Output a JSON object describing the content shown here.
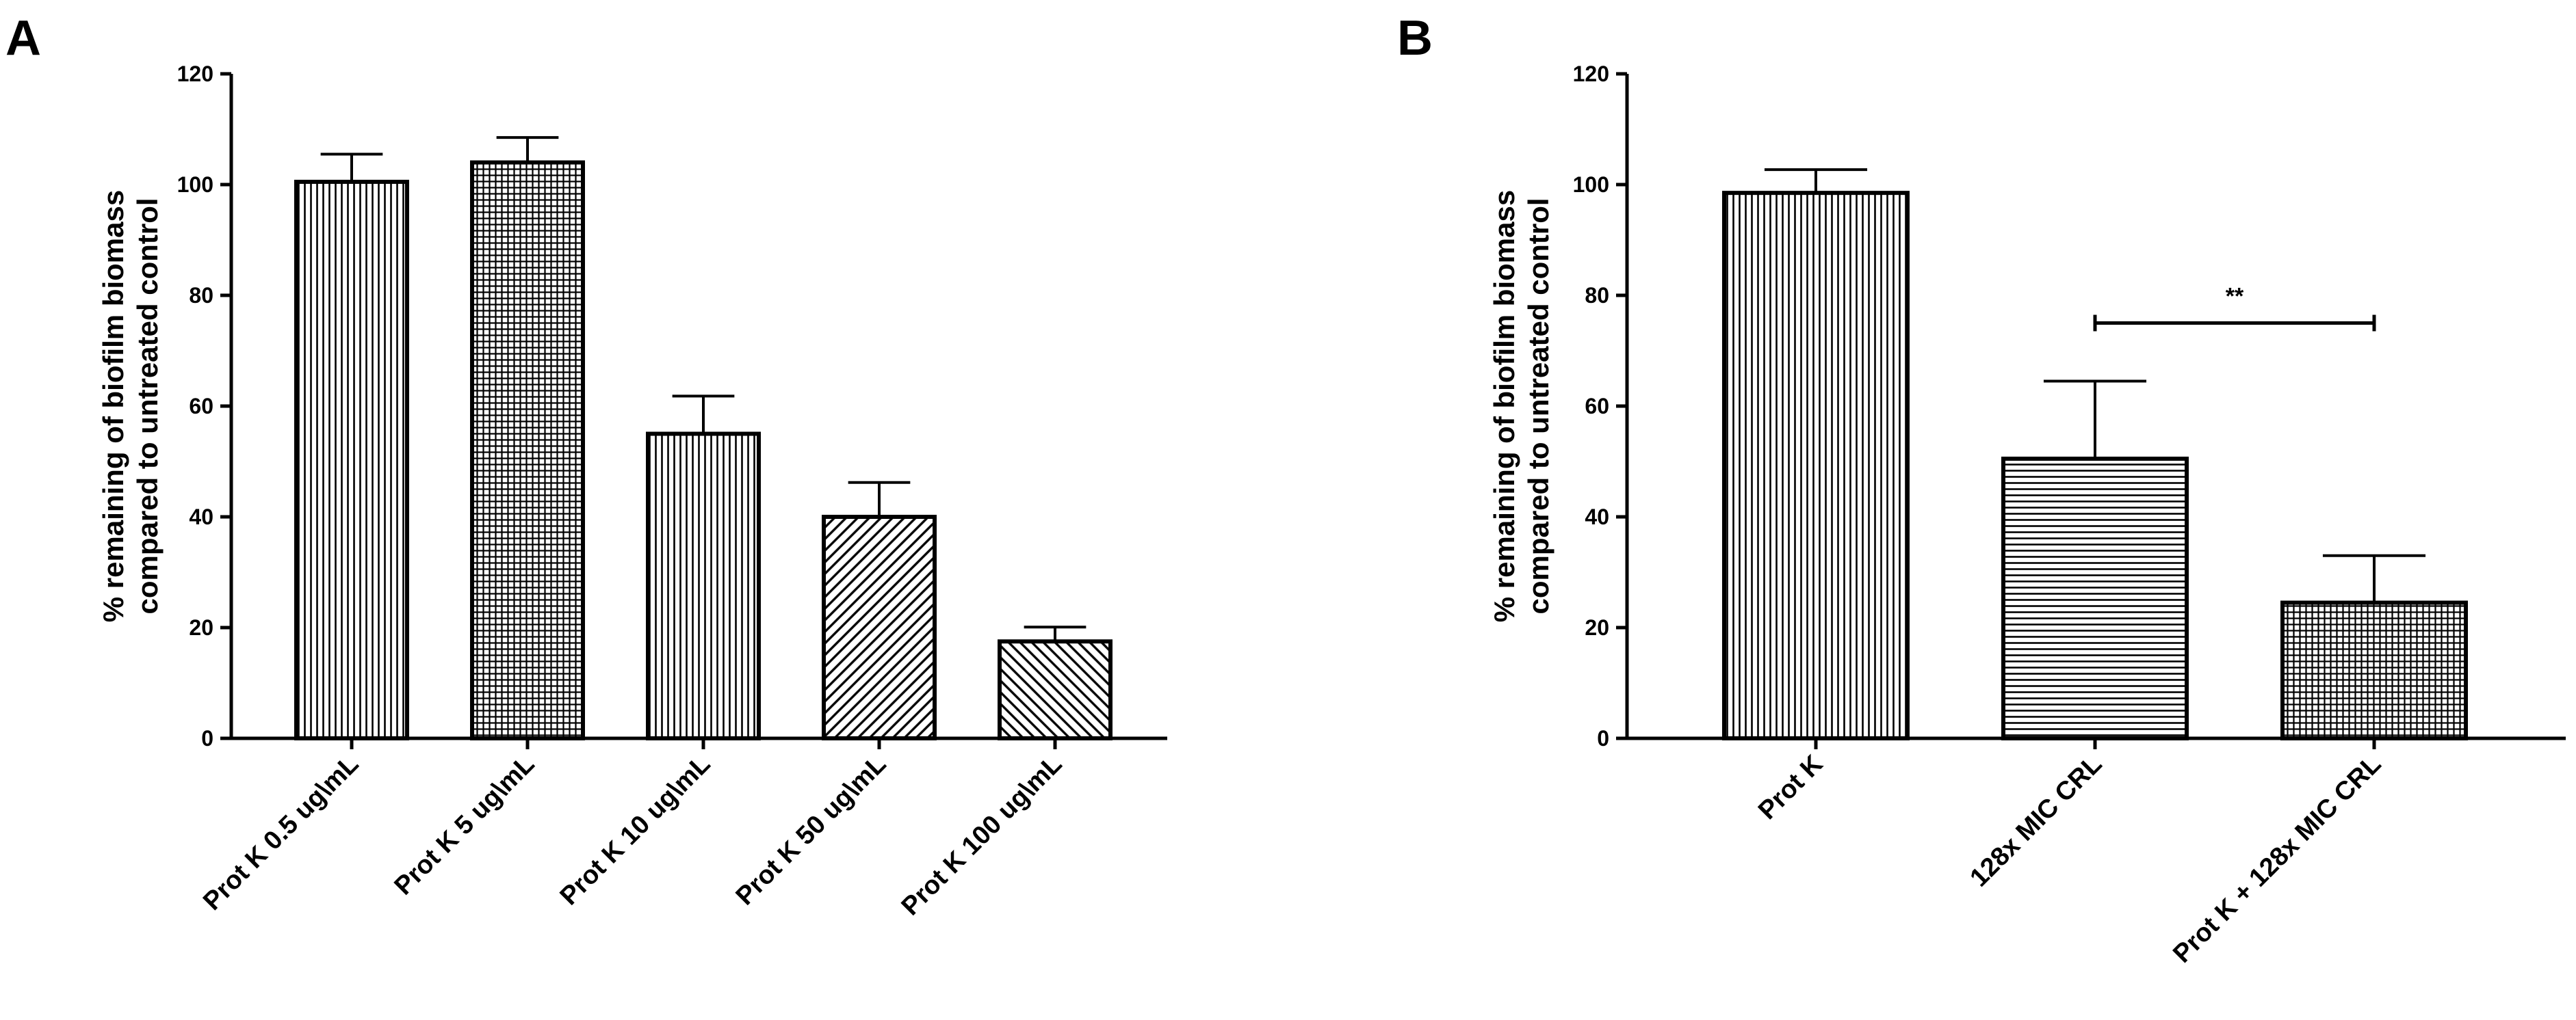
{
  "chart_data": [
    {
      "type": "bar",
      "panel": "A",
      "categories": [
        "Prot K 0.5 ug\\mL",
        "Prot K 5 ug\\mL",
        "Prot K 10 ug\\mL",
        "Prot K 50 ug\\mL",
        "Prot K 100 ug\\mL"
      ],
      "values": [
        100.5,
        104,
        55,
        40,
        17.5
      ],
      "errors": [
        5,
        4.5,
        6.8,
        6.2,
        2.6
      ],
      "patterns": [
        "vertical-lines",
        "grid",
        "vertical-lines",
        "diagonal-up",
        "diagonal-down"
      ],
      "ylabel_lines": [
        "% remaining of biofilm biomass",
        "compared to untreated control"
      ],
      "ylim": [
        0,
        120
      ],
      "yticks": [
        "0",
        "20",
        "40",
        "60",
        "80",
        "100",
        "120"
      ],
      "grid": false
    },
    {
      "type": "bar",
      "panel": "B",
      "categories": [
        "Prot K",
        "128x MIC CRL",
        "Prot K + 128x MIC CRL"
      ],
      "values": [
        98.5,
        50.5,
        24.5
      ],
      "errors": [
        4.2,
        14,
        8.5
      ],
      "patterns": [
        "vertical-lines",
        "horizontal-lines",
        "grid"
      ],
      "ylabel_lines": [
        "% remaining of biofilm biomass",
        "compared to untreated control"
      ],
      "ylim": [
        0,
        120
      ],
      "yticks": [
        "0",
        "20",
        "40",
        "60",
        "80",
        "100",
        "120"
      ],
      "grid": false,
      "significance": {
        "label": "**",
        "from": 1,
        "to": 2,
        "y": 75
      }
    }
  ]
}
